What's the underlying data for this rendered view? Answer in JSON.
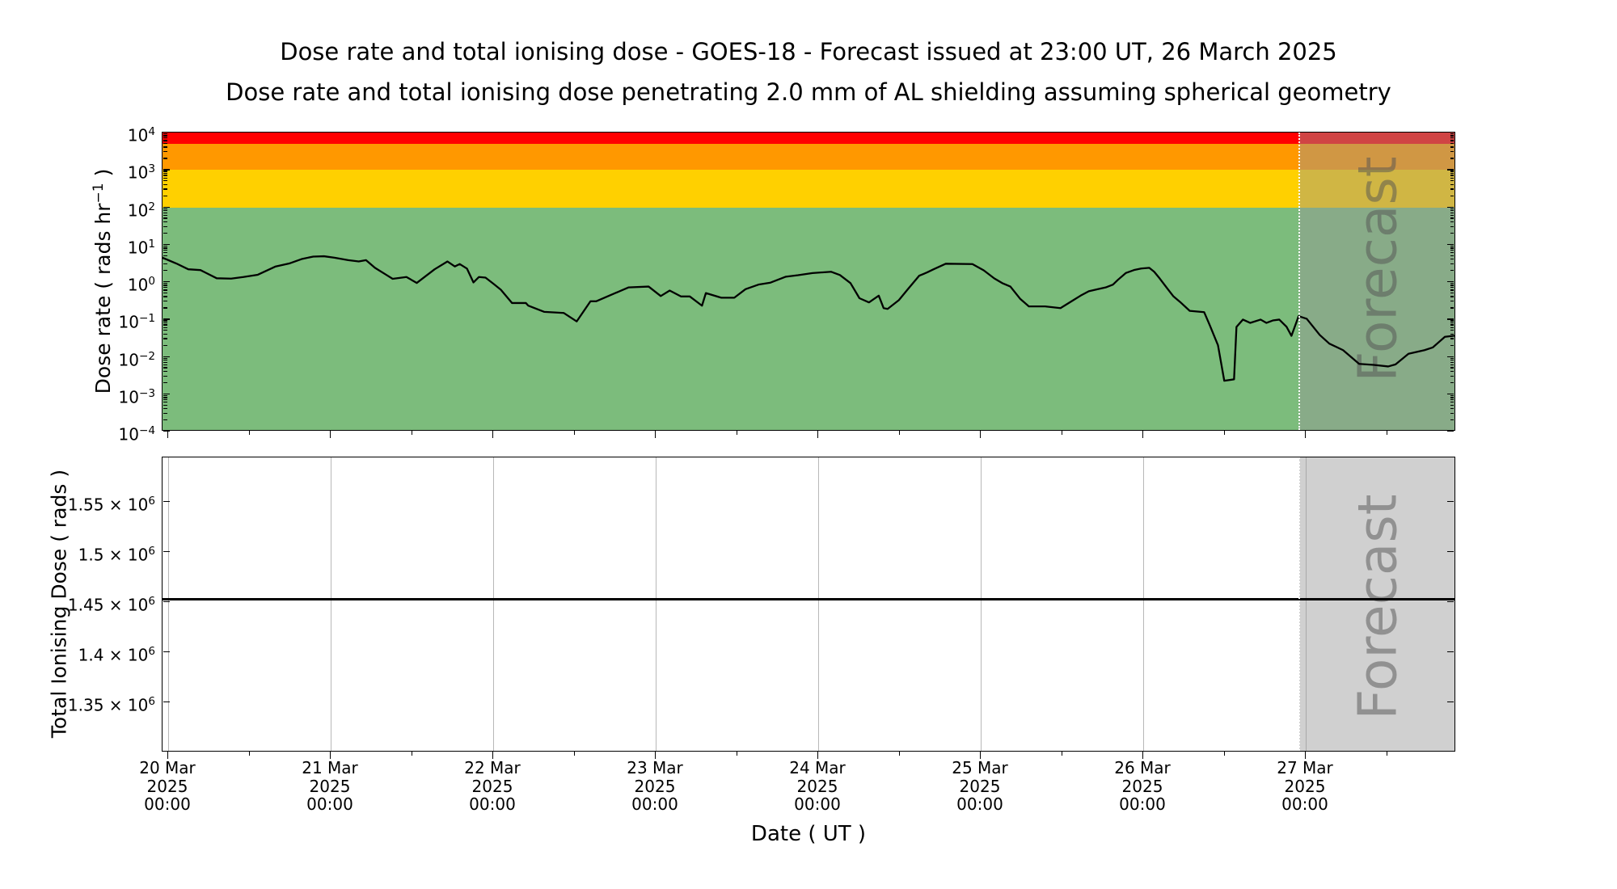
{
  "title": "Dose rate and total ionising dose - GOES-18 - Forecast issued at 23:00 UT, 26 March 2025",
  "subtitle": "Dose rate and total ionising dose penetrating 2.0 mm of AL shielding assuming spherical geometry",
  "xlabel": "Date ( UT )",
  "forecast_label": "Forecast",
  "colors": {
    "band_red": "#ff0000",
    "band_orange": "#ff9800",
    "band_gold": "#ffd000",
    "band_green": "#7cbc7c",
    "forecast_overlay": "rgba(150,150,150,0.45)",
    "forecast_text": "rgba(82,82,82,0.5)",
    "boundary_line": "#ffffff",
    "gridline": "#b8b8b8",
    "data_line": "#000000",
    "background": "#ffffff"
  },
  "top_panel": {
    "ylabel_pre": "Dose rate ( rads hr",
    "ylabel_sup": "−1",
    "ylabel_post": " )",
    "ytick_base": "10",
    "ytick_exponents": [
      4,
      3,
      2,
      1,
      0,
      -1,
      -2,
      -3,
      -4
    ],
    "bands": [
      {
        "name": "red",
        "from": 5000,
        "to": 10000,
        "color": "#ff0000"
      },
      {
        "name": "orange",
        "from": 1000,
        "to": 5000,
        "color": "#ff9800"
      },
      {
        "name": "gold",
        "from": 100,
        "to": 1000,
        "color": "#ffd000"
      },
      {
        "name": "green",
        "from": 0.0001,
        "to": 100,
        "color": "#7cbc7c"
      }
    ]
  },
  "bottom_panel": {
    "ylabel": "Total Ionising Dose ( rads )",
    "ytick_mantissas": [
      "1.55",
      "1.5",
      "1.45",
      "1.4",
      "1.35"
    ],
    "ytick_values": [
      1.55,
      1.5,
      1.45,
      1.4,
      1.35
    ],
    "exp_prefix": " × 10",
    "exp": "6"
  },
  "xticks": {
    "days": [
      "20 Mar",
      "21 Mar",
      "22 Mar",
      "23 Mar",
      "24 Mar",
      "25 Mar",
      "26 Mar",
      "27 Mar"
    ],
    "year": "2025",
    "time": "00:00"
  },
  "chart_data": [
    {
      "type": "line",
      "name": "dose_rate",
      "ylabel": "Dose rate ( rads hr^-1 )",
      "yscale": "log",
      "ylim": [
        0.0001,
        10000
      ],
      "x_unit": "days since 2025-03-20 00:00 UT",
      "xlim_days": [
        -0.035,
        7.92
      ],
      "forecast_start_day": 6.958,
      "forecast_issued": "23:00 UT, 26 March 2025",
      "thresholds": [
        {
          "level": "green",
          "range": [
            0.0001,
            100
          ]
        },
        {
          "level": "yellow",
          "range": [
            100,
            1000
          ]
        },
        {
          "level": "orange",
          "range": [
            1000,
            5000
          ]
        },
        {
          "level": "red",
          "range": [
            5000,
            10000
          ]
        }
      ],
      "points": [
        [
          -0.035,
          4.3
        ],
        [
          0.05,
          3.0
        ],
        [
          0.124,
          2.1
        ],
        [
          0.199,
          2.0
        ],
        [
          0.299,
          1.2
        ],
        [
          0.388,
          1.18
        ],
        [
          0.463,
          1.3
        ],
        [
          0.552,
          1.5
        ],
        [
          0.662,
          2.5
        ],
        [
          0.746,
          3.0
        ],
        [
          0.826,
          4.0
        ],
        [
          0.894,
          4.6
        ],
        [
          0.96,
          4.7
        ],
        [
          1.025,
          4.3
        ],
        [
          1.109,
          3.7
        ],
        [
          1.174,
          3.4
        ],
        [
          1.219,
          3.7
        ],
        [
          1.274,
          2.3
        ],
        [
          1.343,
          1.5
        ],
        [
          1.383,
          1.16
        ],
        [
          1.468,
          1.3
        ],
        [
          1.532,
          0.9
        ],
        [
          1.642,
          2.1
        ],
        [
          1.721,
          3.4
        ],
        [
          1.766,
          2.5
        ],
        [
          1.796,
          2.9
        ],
        [
          1.841,
          2.2
        ],
        [
          1.881,
          0.93
        ],
        [
          1.915,
          1.3
        ],
        [
          1.955,
          1.25
        ],
        [
          2.005,
          0.85
        ],
        [
          2.05,
          0.59
        ],
        [
          2.119,
          0.26
        ],
        [
          2.204,
          0.26
        ],
        [
          2.219,
          0.22
        ],
        [
          2.318,
          0.15
        ],
        [
          2.438,
          0.14
        ],
        [
          2.517,
          0.083
        ],
        [
          2.602,
          0.29
        ],
        [
          2.637,
          0.29
        ],
        [
          2.836,
          0.68
        ],
        [
          2.96,
          0.72
        ],
        [
          3.035,
          0.4
        ],
        [
          3.09,
          0.56
        ],
        [
          3.159,
          0.39
        ],
        [
          3.214,
          0.39
        ],
        [
          3.289,
          0.22
        ],
        [
          3.313,
          0.48
        ],
        [
          3.408,
          0.36
        ],
        [
          3.488,
          0.36
        ],
        [
          3.557,
          0.61
        ],
        [
          3.637,
          0.81
        ],
        [
          3.711,
          0.92
        ],
        [
          3.806,
          1.33
        ],
        [
          3.881,
          1.45
        ],
        [
          3.97,
          1.66
        ],
        [
          4.085,
          1.8
        ],
        [
          4.139,
          1.47
        ],
        [
          4.204,
          0.89
        ],
        [
          4.259,
          0.35
        ],
        [
          4.318,
          0.27
        ],
        [
          4.378,
          0.41
        ],
        [
          4.408,
          0.19
        ],
        [
          4.433,
          0.18
        ],
        [
          4.502,
          0.31
        ],
        [
          4.557,
          0.61
        ],
        [
          4.627,
          1.4
        ],
        [
          4.677,
          1.74
        ],
        [
          4.716,
          2.1
        ],
        [
          4.791,
          2.96
        ],
        [
          4.955,
          2.9
        ],
        [
          5.025,
          1.97
        ],
        [
          5.09,
          1.19
        ],
        [
          5.139,
          0.89
        ],
        [
          5.189,
          0.72
        ],
        [
          5.249,
          0.34
        ],
        [
          5.303,
          0.21
        ],
        [
          5.403,
          0.21
        ],
        [
          5.498,
          0.19
        ],
        [
          5.522,
          0.22
        ],
        [
          5.577,
          0.31
        ],
        [
          5.622,
          0.41
        ],
        [
          5.672,
          0.54
        ],
        [
          5.726,
          0.61
        ],
        [
          5.776,
          0.68
        ],
        [
          5.821,
          0.81
        ],
        [
          5.851,
          1.09
        ],
        [
          5.9,
          1.66
        ],
        [
          5.95,
          2.0
        ],
        [
          5.995,
          2.2
        ],
        [
          6.045,
          2.3
        ],
        [
          6.075,
          1.8
        ],
        [
          6.109,
          1.19
        ],
        [
          6.159,
          0.61
        ],
        [
          6.194,
          0.39
        ],
        [
          6.234,
          0.28
        ],
        [
          6.294,
          0.16
        ],
        [
          6.383,
          0.147
        ],
        [
          6.418,
          0.065
        ],
        [
          6.468,
          0.019
        ],
        [
          6.507,
          0.0021
        ],
        [
          6.567,
          0.0023
        ],
        [
          6.582,
          0.059
        ],
        [
          6.622,
          0.093
        ],
        [
          6.667,
          0.076
        ],
        [
          6.731,
          0.093
        ],
        [
          6.766,
          0.076
        ],
        [
          6.806,
          0.088
        ],
        [
          6.846,
          0.093
        ],
        [
          6.891,
          0.059
        ],
        [
          6.921,
          0.034
        ],
        [
          6.965,
          0.115
        ],
        [
          7.015,
          0.098
        ],
        [
          7.095,
          0.036
        ],
        [
          7.154,
          0.021
        ],
        [
          7.239,
          0.014
        ],
        [
          7.338,
          0.006
        ],
        [
          7.428,
          0.0056
        ],
        [
          7.517,
          0.0051
        ],
        [
          7.562,
          0.0058
        ],
        [
          7.642,
          0.0112
        ],
        [
          7.741,
          0.014
        ],
        [
          7.791,
          0.0165
        ],
        [
          7.866,
          0.032
        ],
        [
          7.92,
          0.034
        ]
      ]
    },
    {
      "type": "line",
      "name": "total_ionising_dose",
      "ylabel": "Total Ionising Dose ( rads )",
      "yscale": "linear",
      "ylim": [
        1300000,
        1594400
      ],
      "x_unit": "days since 2025-03-20 00:00 UT",
      "xlim_days": [
        -0.035,
        7.92
      ],
      "forecast_start_day": 6.958,
      "points": [
        [
          -0.035,
          1453000
        ],
        [
          7.92,
          1453000
        ]
      ]
    }
  ]
}
